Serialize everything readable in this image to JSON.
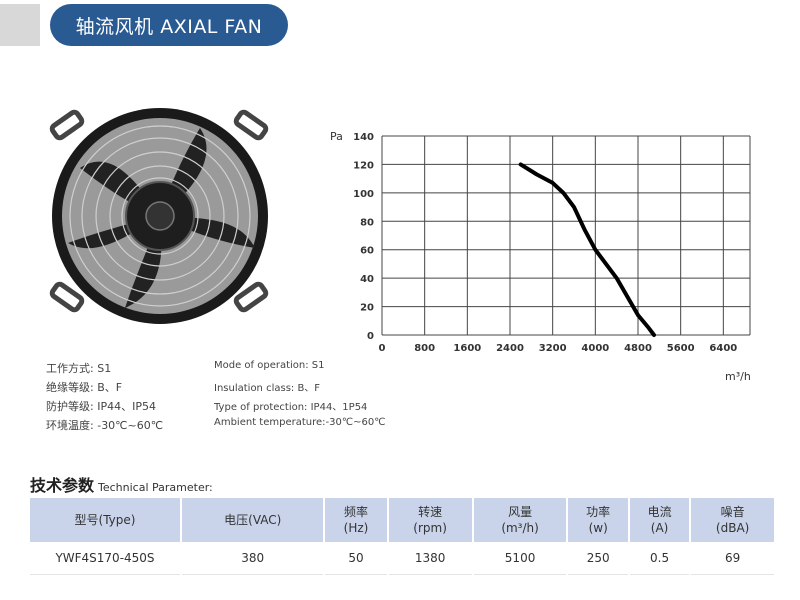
{
  "header": {
    "title": "轴流风机 AXIAL FAN"
  },
  "specs_cn": [
    {
      "label": "工作方式:",
      "value": "S1"
    },
    {
      "label": "绝缘等级:",
      "value": "B、F"
    },
    {
      "label": "防护等级:",
      "value": "IP44、IP54"
    },
    {
      "label": "环境温度:",
      "value": "-30℃~60℃"
    }
  ],
  "specs_en": [
    "Mode of operation: S1",
    "Insulation class: B、F",
    "Type of protection: IP44、1P54",
    "Ambient temperature:-30℃~60℃"
  ],
  "chart_data": {
    "type": "line",
    "ylabel": "Pa",
    "xlabel": "m³/h",
    "x_ticks": [
      0,
      800,
      1600,
      2400,
      3200,
      4000,
      4800,
      5600,
      6400
    ],
    "y_ticks": [
      0,
      20,
      40,
      60,
      80,
      100,
      120,
      140
    ],
    "xlim": [
      0,
      6900
    ],
    "ylim": [
      0,
      140
    ],
    "grid": true,
    "series": [
      {
        "x": [
          2600,
          2900,
          3200,
          3400,
          3600,
          3800,
          4000,
          4200,
          4400,
          4600,
          4800,
          5000,
          5100
        ],
        "y": [
          120,
          113,
          107,
          100,
          90,
          74,
          60,
          50,
          40,
          27,
          14,
          5,
          0
        ]
      }
    ]
  },
  "tech": {
    "title": "技术参数",
    "subtitle": "Technical Parameter:"
  },
  "table": {
    "headers": [
      [
        "型号(Type)"
      ],
      [
        "电压(VAC)"
      ],
      [
        "频率",
        "(Hz)"
      ],
      [
        "转速",
        "(rpm)"
      ],
      [
        "风量",
        "(m³/h)"
      ],
      [
        "功率",
        "(w)"
      ],
      [
        "电流",
        "(A)"
      ],
      [
        "噪音",
        "(dBA)"
      ]
    ],
    "row": [
      "YWF4S170-450S",
      "380",
      "50",
      "1380",
      "5100",
      "250",
      "0.5",
      "69"
    ]
  }
}
